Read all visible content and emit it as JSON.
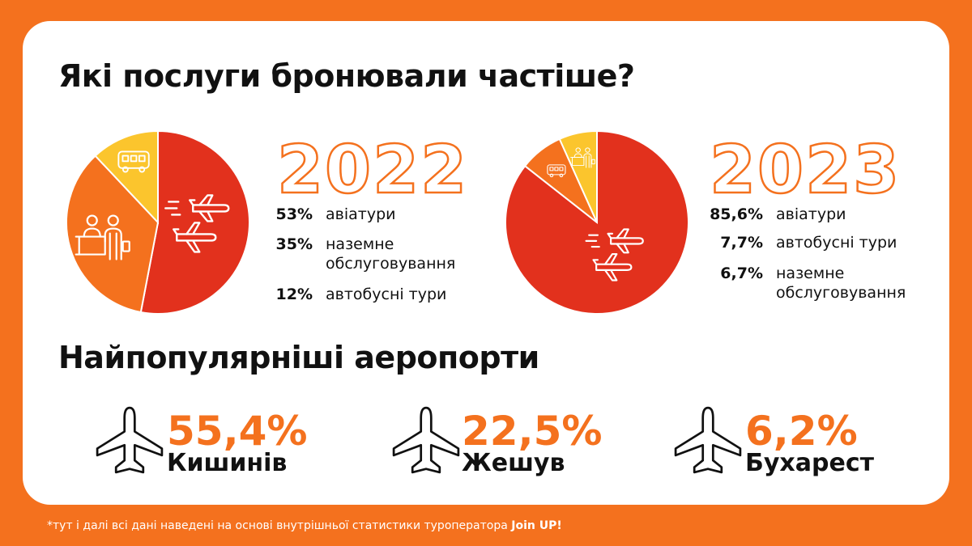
{
  "title": "Які послуги бронювали частіше?",
  "airports_title": "Найпопулярніші аеропорти",
  "footnote_text": "*тут і далі всі дані наведені на основі внутрішньої статистики туроператора ",
  "footnote_brand": "Join UP!",
  "colors": {
    "orange": "#F4711E",
    "red": "#E2311D",
    "yellow": "#FBC52D",
    "text": "#111111"
  },
  "chart_data": [
    {
      "type": "pie",
      "title": "2022",
      "slices": [
        {
          "label": "авіатури",
          "value": 53,
          "value_label": "53%",
          "color": "#E2311D",
          "icon": "airplanes-icon"
        },
        {
          "label": "наземне обслуговування",
          "value": 35,
          "value_label": "35%",
          "color": "#F4711E",
          "icon": "reception-desk-icon"
        },
        {
          "label": "автобусні тури",
          "value": 12,
          "value_label": "12%",
          "color": "#FBC52D",
          "icon": "bus-icon"
        }
      ],
      "legend_lines": [
        {
          "pct": "53%",
          "lines": [
            "авіатури"
          ]
        },
        {
          "pct": "35%",
          "lines": [
            "наземне",
            "обслуговування"
          ]
        },
        {
          "pct": "12%",
          "lines": [
            "автобусні тури"
          ]
        }
      ]
    },
    {
      "type": "pie",
      "title": "2023",
      "slices": [
        {
          "label": "авіатури",
          "value": 85.6,
          "value_label": "85,6%",
          "color": "#E2311D",
          "icon": "airplanes-icon"
        },
        {
          "label": "автобусні тури",
          "value": 7.7,
          "value_label": "7,7%",
          "color": "#F4711E",
          "icon": "bus-icon"
        },
        {
          "label": "наземне обслуговування",
          "value": 6.7,
          "value_label": "6,7%",
          "color": "#FBC52D",
          "icon": "reception-desk-icon"
        }
      ],
      "legend_lines": [
        {
          "pct": "85,6%",
          "lines": [
            "авіатури"
          ]
        },
        {
          "pct": "7,7%",
          "lines": [
            "автобусні тури"
          ]
        },
        {
          "pct": "6,7%",
          "lines": [
            "наземне",
            "обслуговування"
          ]
        }
      ]
    }
  ],
  "airports": [
    {
      "value": "55,4%",
      "city": "Кишинів",
      "icon": "airplane-icon"
    },
    {
      "value": "22,5%",
      "city": "Жешув",
      "icon": "airplane-icon"
    },
    {
      "value": "6,2%",
      "city": "Бухарест",
      "icon": "airplane-icon"
    }
  ]
}
